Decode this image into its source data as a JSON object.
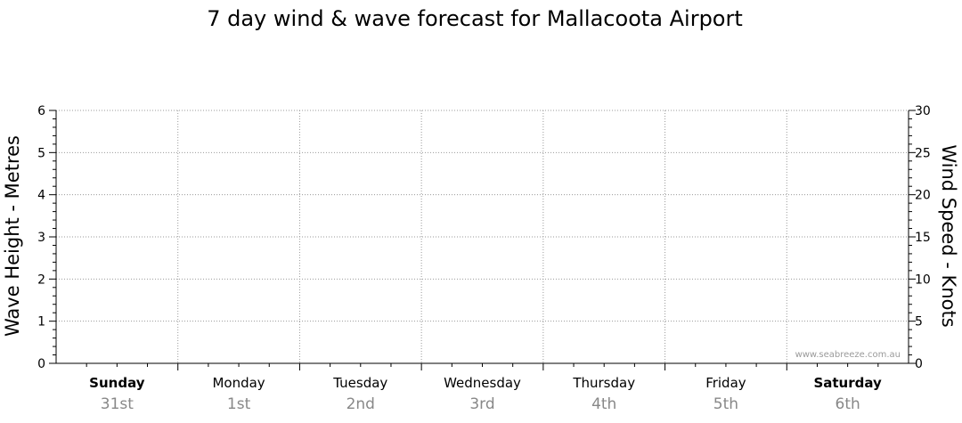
{
  "chart_data": {
    "type": "line",
    "title": "7 day wind & wave forecast for Mallacoota Airport",
    "ylabel": "Wave Height - Metres",
    "y2label": "Wind Speed - Knots",
    "ylim": [
      0,
      6
    ],
    "y2lim": [
      0,
      30
    ],
    "yticks": [
      "0",
      "1",
      "2",
      "3",
      "4",
      "5",
      "6"
    ],
    "y2ticks": [
      "0",
      "5",
      "10",
      "15",
      "20",
      "25",
      "30"
    ],
    "grid": true,
    "days": [
      {
        "name": "Sunday",
        "date": "31st",
        "bold": true
      },
      {
        "name": "Monday",
        "date": "1st",
        "bold": false
      },
      {
        "name": "Tuesday",
        "date": "2nd",
        "bold": false
      },
      {
        "name": "Wednesday",
        "date": "3rd",
        "bold": false
      },
      {
        "name": "Thursday",
        "date": "4th",
        "bold": false
      },
      {
        "name": "Friday",
        "date": "5th",
        "bold": false
      },
      {
        "name": "Saturday",
        "date": "6th",
        "bold": true
      }
    ],
    "series": []
  },
  "credit": "www.seabreeze.com.au"
}
